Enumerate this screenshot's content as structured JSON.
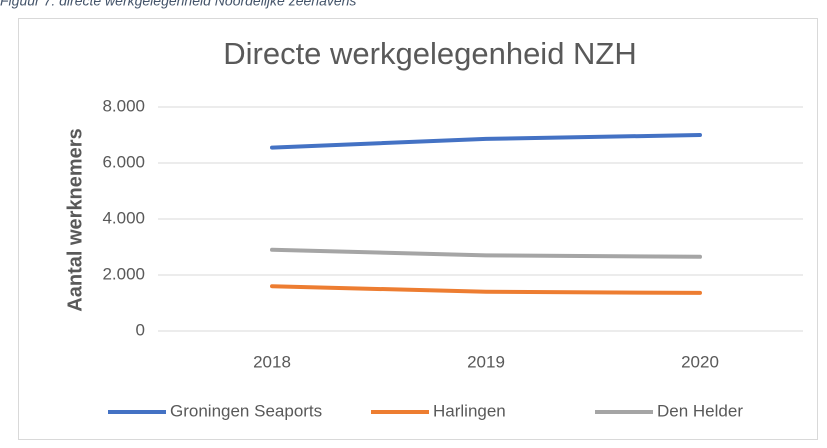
{
  "caption": "Figuur 7: directe werkgelegenheid Noordelijke zeehavens",
  "chart_data": {
    "type": "line",
    "title": "Directe werkgelegenheid NZH",
    "y_label": "Aantal werknemers",
    "categories": [
      "2018",
      "2019",
      "2020"
    ],
    "series": [
      {
        "name": "Groningen Seaports",
        "color": "#4472c4",
        "values": [
          6550,
          6860,
          7000
        ]
      },
      {
        "name": "Harlingen",
        "color": "#ed7d31",
        "values": [
          1600,
          1400,
          1360
        ]
      },
      {
        "name": "Den Helder",
        "color": "#a5a5a5",
        "values": [
          2900,
          2700,
          2650
        ]
      }
    ],
    "ylim": [
      0,
      8000
    ],
    "yticks": [
      0,
      {
        "value": 2000,
        "label": "2.000"
      },
      {
        "value": 4000,
        "label": "4.000"
      },
      {
        "value": 6000,
        "label": "6.000"
      },
      {
        "value": 8000,
        "label": "8.000"
      }
    ],
    "grid": true,
    "legend": "bottom"
  }
}
